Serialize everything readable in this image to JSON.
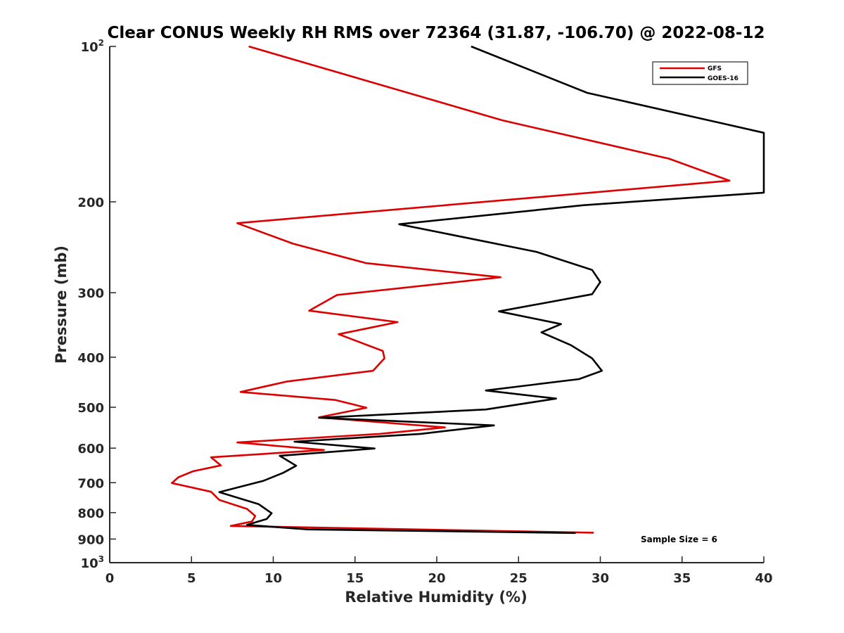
{
  "chart_data": {
    "type": "line",
    "title": "Clear CONUS Weekly RH RMS over 72364 (31.87, -106.70) @ 2022-08-12",
    "xlabel": "Relative Humidity (%)",
    "ylabel": "Pressure (mb)",
    "xlim": [
      0,
      40
    ],
    "ylim": [
      100,
      1000
    ],
    "yscale": "log",
    "y_reversed": true,
    "xticks": [
      0,
      5,
      10,
      15,
      20,
      25,
      30,
      35,
      40
    ],
    "yticks": [
      100,
      200,
      300,
      400,
      500,
      600,
      700,
      800,
      900,
      1000
    ],
    "ytick_labels": [
      {
        "value": 100,
        "base": "10",
        "exp": "2"
      },
      {
        "value": 200,
        "base": "200",
        "exp": ""
      },
      {
        "value": 300,
        "base": "300",
        "exp": ""
      },
      {
        "value": 400,
        "base": "400",
        "exp": ""
      },
      {
        "value": 500,
        "base": "500",
        "exp": ""
      },
      {
        "value": 600,
        "base": "600",
        "exp": ""
      },
      {
        "value": 700,
        "base": "700",
        "exp": ""
      },
      {
        "value": 800,
        "base": "800",
        "exp": ""
      },
      {
        "value": 900,
        "base": "900",
        "exp": ""
      },
      {
        "value": 1000,
        "base": "10",
        "exp": "3"
      }
    ],
    "grid": false,
    "legend_position": "top-right",
    "annotation": "Sample Size = 6",
    "series": [
      {
        "name": "GFS",
        "color": "#dd0000",
        "x": [
          8.5,
          24.0,
          34.2,
          37.9,
          7.8,
          11.2,
          15.7,
          23.9,
          13.9,
          12.2,
          17.6,
          14.0,
          16.7,
          16.8,
          16.1,
          10.8,
          8.0,
          13.8,
          15.7,
          12.8,
          20.5,
          16.5,
          7.8,
          13.1,
          6.2,
          6.8,
          5.1,
          4.2,
          3.8,
          6.2,
          6.7,
          8.4,
          8.9,
          8.7,
          7.4,
          29.6
        ],
        "y": [
          100,
          139,
          165,
          182,
          220,
          241,
          263,
          280,
          303,
          325,
          342,
          361,
          389,
          402,
          425,
          446,
          467,
          484,
          501,
          523,
          547,
          563,
          585,
          605,
          625,
          648,
          665,
          683,
          701,
          729,
          756,
          787,
          812,
          832,
          849,
          875
        ]
      },
      {
        "name": "GOES-16",
        "color": "#000000",
        "x": [
          22.1,
          29.2,
          40.0,
          40.0,
          29.0,
          17.7,
          26.1,
          29.5,
          30.0,
          29.5,
          23.8,
          27.6,
          26.4,
          28.2,
          29.5,
          30.1,
          28.7,
          23.0,
          27.3,
          23.0,
          12.8,
          23.5,
          19.0,
          11.3,
          16.2,
          10.4,
          11.4,
          10.6,
          9.4,
          6.7,
          9.1,
          9.9,
          9.6,
          8.4,
          12.1,
          28.5
        ],
        "y": [
          100,
          123,
          147,
          192,
          203,
          221,
          250,
          271,
          286,
          302,
          326,
          345,
          358,
          379,
          402,
          425,
          441,
          464,
          481,
          505,
          524,
          542,
          563,
          583,
          601,
          621,
          649,
          670,
          694,
          730,
          770,
          802,
          823,
          845,
          862,
          876
        ]
      }
    ]
  }
}
